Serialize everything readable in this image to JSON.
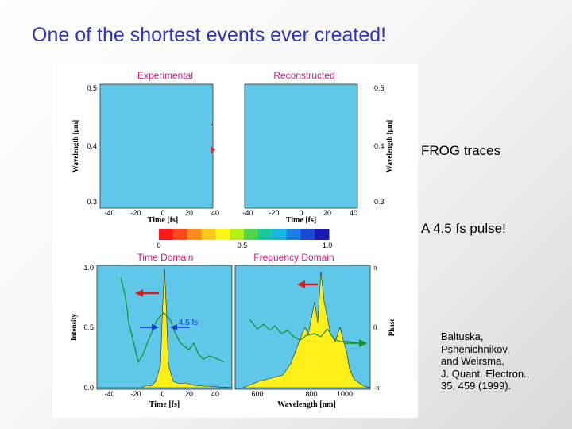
{
  "slide": {
    "title": "One of the shortest events ever created!",
    "frog_label": "FROG traces",
    "pulse_label": "A 4.5 fs pulse!",
    "reference": [
      "Baltuska,",
      "Pshenichnikov,",
      "and Weirsma,",
      "J. Quant. Electron.,",
      "35, 459 (1999)."
    ]
  },
  "figure": {
    "experimental_title": "Experimental",
    "reconstructed_title": "Reconstructed",
    "time_domain_title": "Time Domain",
    "frequency_domain_title": "Frequency Domain",
    "wavelength_um_label": "Wavelength [μm]",
    "time_fs_label": "Time [fs]",
    "intensity_label": "Intensity",
    "phase_label": "Phase",
    "wavelength_nm_label": "Wavelength [nm]",
    "pulse_width_label": "4.5 fs",
    "frog_wl_ticks": [
      "0.5",
      "0.4",
      "0.3"
    ],
    "frog_time_ticks": [
      "-40",
      "-20",
      "0",
      "20",
      "40"
    ],
    "colorbar_ticks": [
      "0",
      "0.5",
      "1.0"
    ],
    "intensity_ticks": [
      "1.0",
      "0.5",
      "0.0"
    ],
    "phase_ticks": [
      "π",
      "0",
      "-π"
    ],
    "nm_ticks": [
      "600",
      "800",
      "1000"
    ],
    "colorbar_colors": [
      "#ff1a1a",
      "#ff4a1a",
      "#ff8c1a",
      "#ffc81a",
      "#fff41a",
      "#b6ef1a",
      "#4bd64b",
      "#1ac8a0",
      "#1ab4e6",
      "#1a80e6",
      "#1a4ad6",
      "#1a1ab4"
    ]
  }
}
